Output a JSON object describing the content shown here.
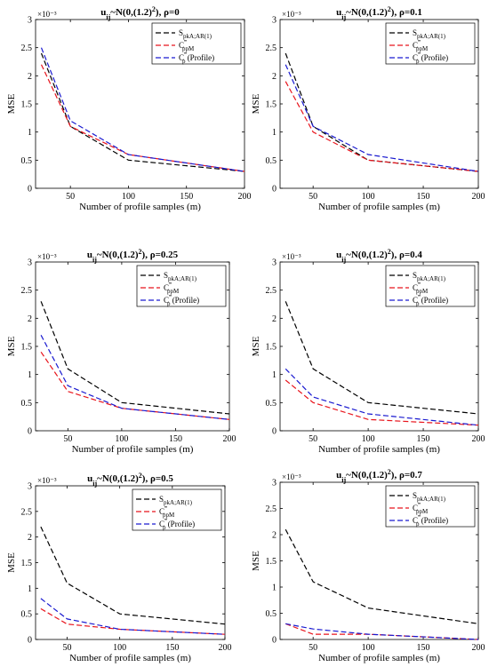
{
  "chart_data": [
    {
      "type": "line",
      "title": "u_ij~N(0,(1.2)²), ρ=0",
      "title_main": "u",
      "title_sub": "ij",
      "title_mid": "~N(0,(1.2)",
      "title_sup": "2",
      "title_end": "), ρ=0",
      "xlabel": "Number of profile samples (m)",
      "ylabel": "MSE",
      "y_exponent": "×10⁻³",
      "xlim": [
        20,
        200
      ],
      "ylim": [
        0,
        3
      ],
      "x_ticks": [
        "50",
        "100",
        "150",
        "200"
      ],
      "y_ticks": [
        "0",
        "0.5",
        "1",
        "1.5",
        "2",
        "2.5",
        "3"
      ],
      "legend_position": "top-right",
      "x": [
        25,
        50,
        100,
        200
      ],
      "series": [
        {
          "name": "S_pkA;AR(1)",
          "base": "S",
          "sub": "pkA;AR(1)",
          "sup": "",
          "suffix": "",
          "color": "#000000",
          "values": [
            2.4,
            1.1,
            0.5,
            0.3
          ]
        },
        {
          "name": "C‴_ppM",
          "base": "C",
          "sub": "ppM",
          "sup": "‴",
          "suffix": "",
          "color": "#e8141c",
          "values": [
            2.2,
            1.1,
            0.6,
            0.3
          ]
        },
        {
          "name": "C‴_p (Profile)",
          "base": "C",
          "sub": "p",
          "sup": "‴",
          "suffix": " (Profile)",
          "color": "#1a1ad0",
          "values": [
            2.5,
            1.2,
            0.6,
            0.3
          ]
        }
      ]
    },
    {
      "type": "line",
      "title": "u_ij~N(0,(1.2)²), ρ=0.1",
      "title_main": "u",
      "title_sub": "ij",
      "title_mid": "~N(0,(1.2)",
      "title_sup": "2",
      "title_end": "), ρ=0.1",
      "xlabel": "Number of profile samples (m)",
      "ylabel": "MSE",
      "y_exponent": "×10⁻³",
      "xlim": [
        20,
        200
      ],
      "ylim": [
        0,
        3
      ],
      "x_ticks": [
        "50",
        "100",
        "150",
        "200"
      ],
      "y_ticks": [
        "0",
        "0.5",
        "1",
        "1.5",
        "2",
        "2.5",
        "3"
      ],
      "legend_position": "top-right",
      "x": [
        25,
        50,
        100,
        200
      ],
      "series": [
        {
          "name": "S_pkA;AR(1)",
          "base": "S",
          "sub": "pkA;AR(1)",
          "sup": "",
          "suffix": "",
          "color": "#000000",
          "values": [
            2.4,
            1.1,
            0.5,
            0.3
          ]
        },
        {
          "name": "C‴_ppM",
          "base": "C",
          "sub": "ppM",
          "sup": "‴",
          "suffix": "",
          "color": "#e8141c",
          "values": [
            1.9,
            1.0,
            0.5,
            0.3
          ]
        },
        {
          "name": "C‴_p (Profile)",
          "base": "C",
          "sub": "p",
          "sup": "‴",
          "suffix": " (Profile)",
          "color": "#1a1ad0",
          "values": [
            2.2,
            1.1,
            0.6,
            0.3
          ]
        }
      ]
    },
    {
      "type": "line",
      "title": "u_ij~N(0,(1.2)²), ρ=0.25",
      "title_main": "u",
      "title_sub": "ij",
      "title_mid": "~N(0,(1.2)",
      "title_sup": "2",
      "title_end": "), ρ=0.25",
      "xlabel": "Number of profile samples (m)",
      "ylabel": "MSE",
      "y_exponent": "×10⁻³",
      "xlim": [
        20,
        200
      ],
      "ylim": [
        0,
        3
      ],
      "x_ticks": [
        "50",
        "100",
        "150",
        "200"
      ],
      "y_ticks": [
        "0",
        "0.5",
        "1",
        "1.5",
        "2",
        "2.5",
        "3"
      ],
      "legend_position": "top-right",
      "x": [
        25,
        50,
        100,
        200
      ],
      "series": [
        {
          "name": "S_pkA;AR(1)",
          "base": "S",
          "sub": "pkA;AR(1)",
          "sup": "",
          "suffix": "",
          "color": "#000000",
          "values": [
            2.3,
            1.1,
            0.5,
            0.3
          ]
        },
        {
          "name": "C‴_ppM",
          "base": "C",
          "sub": "ppM",
          "sup": "‴",
          "suffix": "",
          "color": "#e8141c",
          "values": [
            1.4,
            0.7,
            0.4,
            0.2
          ]
        },
        {
          "name": "C‴_p (Profile)",
          "base": "C",
          "sub": "p",
          "sup": "‴",
          "suffix": " (Profile)",
          "color": "#1a1ad0",
          "values": [
            1.7,
            0.8,
            0.4,
            0.2
          ]
        }
      ]
    },
    {
      "type": "line",
      "title": "u_ij~N(0,(1.2)²), ρ=0.4",
      "title_main": "u",
      "title_sub": "ij",
      "title_mid": "~N(0,(1.2)",
      "title_sup": "2",
      "title_end": "), ρ=0.4",
      "xlabel": "Number of profile samples (m)",
      "ylabel": "MSE",
      "y_exponent": "×10⁻³",
      "xlim": [
        20,
        200
      ],
      "ylim": [
        0,
        3
      ],
      "x_ticks": [
        "50",
        "100",
        "150",
        "200"
      ],
      "y_ticks": [
        "0",
        "0.5",
        "1",
        "1.5",
        "2",
        "2.5",
        "3"
      ],
      "legend_position": "top-right",
      "x": [
        25,
        50,
        100,
        200
      ],
      "series": [
        {
          "name": "S_pkA;AR(1)",
          "base": "S",
          "sub": "pkA;AR(1)",
          "sup": "",
          "suffix": "",
          "color": "#000000",
          "values": [
            2.3,
            1.1,
            0.5,
            0.3
          ]
        },
        {
          "name": "C‴_ppM",
          "base": "C",
          "sub": "ppM",
          "sup": "‴",
          "suffix": "",
          "color": "#e8141c",
          "values": [
            0.9,
            0.5,
            0.2,
            0.1
          ]
        },
        {
          "name": "C‴_p (Profile)",
          "base": "C",
          "sub": "p",
          "sup": "‴",
          "suffix": " (Profile)",
          "color": "#1a1ad0",
          "values": [
            1.1,
            0.6,
            0.3,
            0.1
          ]
        }
      ]
    },
    {
      "type": "line",
      "title": "u_ij~N(0,(1.2)²), ρ=0.5",
      "title_main": "u",
      "title_sub": "ij",
      "title_mid": "~N(0,(1.2)",
      "title_sup": "2",
      "title_end": "), ρ=0.5",
      "xlabel": "Number of profile samples (m)",
      "ylabel": "MSE",
      "y_exponent": "×10⁻³",
      "xlim": [
        20,
        200
      ],
      "ylim": [
        0,
        3
      ],
      "x_ticks": [
        "50",
        "100",
        "150",
        "200"
      ],
      "y_ticks": [
        "0",
        "0.5",
        "1",
        "1.5",
        "2",
        "2.5",
        "3"
      ],
      "legend_position": "top-right",
      "x": [
        25,
        50,
        100,
        200
      ],
      "series": [
        {
          "name": "S_pkA;AR(1)",
          "base": "S",
          "sub": "pkA;AR(1)",
          "sup": "",
          "suffix": "",
          "color": "#000000",
          "values": [
            2.2,
            1.1,
            0.5,
            0.3
          ]
        },
        {
          "name": "C‴_ppM",
          "base": "C",
          "sub": "ppM",
          "sup": "‴",
          "suffix": "",
          "color": "#e8141c",
          "values": [
            0.6,
            0.3,
            0.2,
            0.1
          ]
        },
        {
          "name": "C‴_p (Profile)",
          "base": "C",
          "sub": "p",
          "sup": "‴",
          "suffix": " (Profile)",
          "color": "#1a1ad0",
          "values": [
            0.8,
            0.4,
            0.2,
            0.1
          ]
        }
      ]
    },
    {
      "type": "line",
      "title": "u_ij~N(0,(1.2)²), ρ=0.7",
      "title_main": "u",
      "title_sub": "ij",
      "title_mid": "~N(0,(1.2)",
      "title_sup": "2",
      "title_end": "), ρ=0.7",
      "xlabel": "Number of profile samples (m)",
      "ylabel": "MSE",
      "y_exponent": "×10⁻³",
      "xlim": [
        20,
        200
      ],
      "ylim": [
        0,
        3
      ],
      "x_ticks": [
        "50",
        "100",
        "150",
        "200"
      ],
      "y_ticks": [
        "0",
        "0.5",
        "1",
        "1.5",
        "2",
        "2.5",
        "3"
      ],
      "legend_position": "top-right",
      "x": [
        25,
        50,
        100,
        200
      ],
      "series": [
        {
          "name": "S_pkA;AR(1)",
          "base": "S",
          "sub": "pkA;AR(1)",
          "sup": "",
          "suffix": "",
          "color": "#000000",
          "values": [
            2.1,
            1.1,
            0.6,
            0.3
          ]
        },
        {
          "name": "C‴_ppM",
          "base": "C",
          "sub": "ppM",
          "sup": "‴",
          "suffix": "",
          "color": "#e8141c",
          "values": [
            0.3,
            0.1,
            0.1,
            0.0
          ]
        },
        {
          "name": "C‴_p (Profile)",
          "base": "C",
          "sub": "p",
          "sup": "‴",
          "suffix": " (Profile)",
          "color": "#1a1ad0",
          "values": [
            0.3,
            0.2,
            0.1,
            0.0
          ]
        }
      ]
    }
  ]
}
